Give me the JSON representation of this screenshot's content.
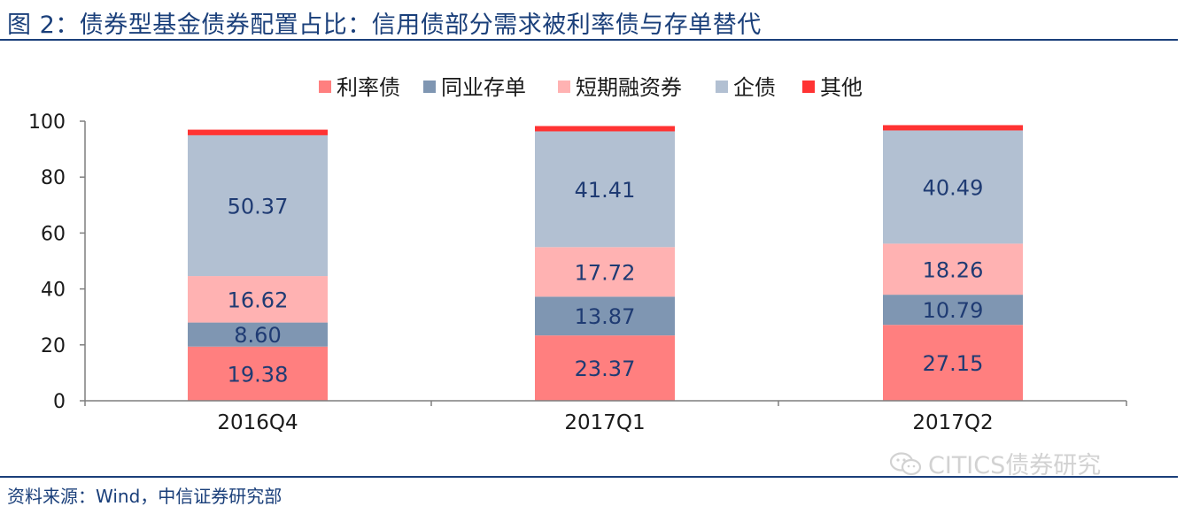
{
  "header": {
    "title": "图 2：债券型基金债券配置占比：信用债部分需求被利率债与存单替代"
  },
  "footer": {
    "source": "资料来源：Wind，中信证券研究部",
    "watermark": "CITICS债券研究"
  },
  "chart_data": {
    "type": "bar",
    "stacked": true,
    "categories": [
      "2016Q4",
      "2017Q1",
      "2017Q2"
    ],
    "series": [
      {
        "name": "利率债",
        "color": "#ff7f7f",
        "values": [
          19.38,
          23.37,
          27.15
        ],
        "labels": [
          "19.38",
          "23.37",
          "27.15"
        ]
      },
      {
        "name": "同业存单",
        "color": "#7f96b2",
        "values": [
          8.6,
          13.87,
          10.79
        ],
        "labels": [
          "8.60",
          "13.87",
          "10.79"
        ]
      },
      {
        "name": "短期融资券",
        "color": "#ffb2b2",
        "values": [
          16.62,
          17.72,
          18.26
        ],
        "labels": [
          "16.62",
          "17.72",
          "18.26"
        ]
      },
      {
        "name": "企债",
        "color": "#b2c0d2",
        "values": [
          50.37,
          41.41,
          40.49
        ],
        "labels": [
          "50.37",
          "41.41",
          "40.49"
        ]
      },
      {
        "name": "其他",
        "color": "#ff3333",
        "values": [
          2.0,
          1.9,
          1.9
        ]
      }
    ],
    "yticks": [
      "0",
      "20",
      "40",
      "60",
      "80",
      "100"
    ],
    "ylim": [
      0,
      100
    ],
    "legend_position": "top-center",
    "grid": false
  }
}
